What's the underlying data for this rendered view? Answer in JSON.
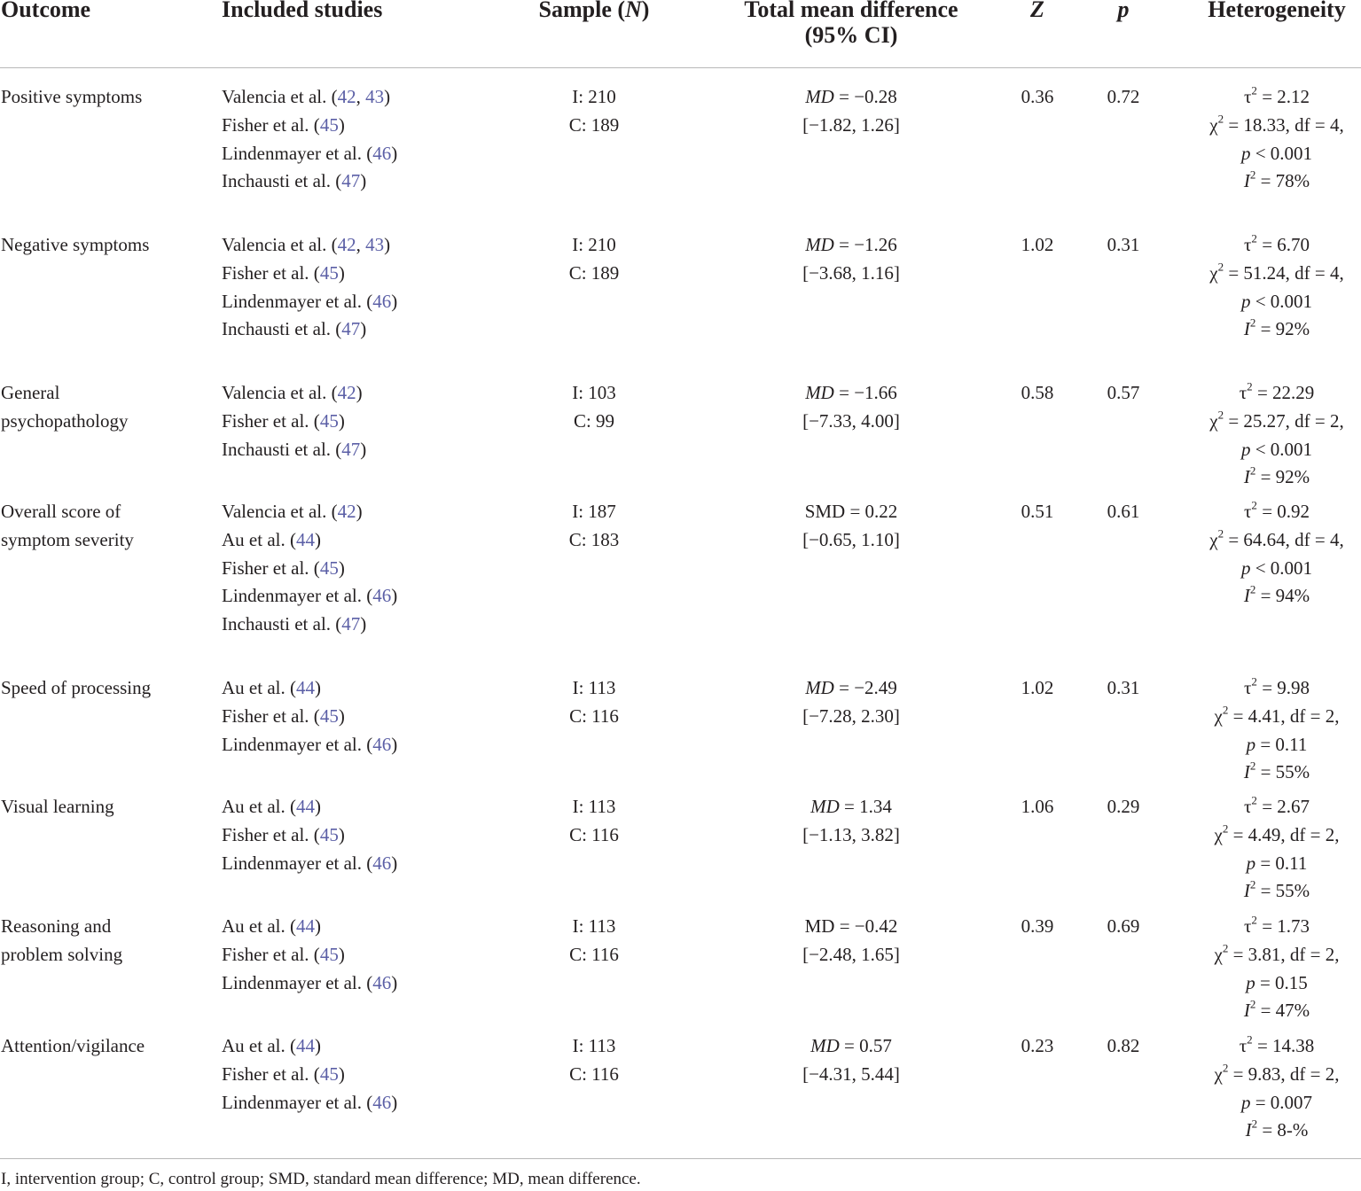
{
  "header": {
    "outcome": "Outcome",
    "studies": "Included studies",
    "sample_prefix": "Sample (",
    "sample_n": "N",
    "sample_suffix": ")",
    "md_line1": "Total mean difference",
    "md_line2": "(95% CI)",
    "z": "Z",
    "p": "p",
    "heterogeneity": "Heterogeneity"
  },
  "rows": [
    {
      "outcome": [
        "Positive symptoms"
      ],
      "studies": [
        {
          "name": "Valencia et al. (",
          "refs": [
            "42",
            "43"
          ],
          "close": ")"
        },
        {
          "name": "Fisher et al. (",
          "refs": [
            "45"
          ],
          "close": ")"
        },
        {
          "name": "Lindenmayer et al. (",
          "refs": [
            "46"
          ],
          "close": ")"
        },
        {
          "name": "Inchausti et al. (",
          "refs": [
            "47"
          ],
          "close": ")"
        }
      ],
      "sample_i": "I: 210",
      "sample_c": "C: 189",
      "md_label": "MD",
      "md_label_italic": true,
      "md_value": " = −0.28",
      "md_ci": "[−1.82, 1.26]",
      "z": "0.36",
      "p": "0.72",
      "tau2": " = 2.12",
      "chi2": " = 18.33, df = 4,",
      "p_het": " < 0.001",
      "i2": " = 78%"
    },
    {
      "outcome": [
        "Negative symptoms"
      ],
      "studies": [
        {
          "name": "Valencia et al. (",
          "refs": [
            "42",
            "43"
          ],
          "close": ")"
        },
        {
          "name": "Fisher et al. (",
          "refs": [
            "45"
          ],
          "close": ")"
        },
        {
          "name": "Lindenmayer et al. (",
          "refs": [
            "46"
          ],
          "close": ")"
        },
        {
          "name": "Inchausti et al. (",
          "refs": [
            "47"
          ],
          "close": ")"
        }
      ],
      "sample_i": "I: 210",
      "sample_c": "C: 189",
      "md_label": "MD",
      "md_label_italic": true,
      "md_value": " = −1.26",
      "md_ci": "[−3.68, 1.16]",
      "z": "1.02",
      "p": "0.31",
      "tau2": " = 6.70",
      "chi2": " = 51.24, df = 4,",
      "p_het": " < 0.001",
      "i2": " = 92%"
    },
    {
      "outcome": [
        "General",
        "psychopathology"
      ],
      "studies": [
        {
          "name": "Valencia et al. (",
          "refs": [
            "42"
          ],
          "close": ")"
        },
        {
          "name": "Fisher et al. (",
          "refs": [
            "45"
          ],
          "close": ")"
        },
        {
          "name": "Inchausti et al. (",
          "refs": [
            "47"
          ],
          "close": ")"
        }
      ],
      "sample_i": "I: 103",
      "sample_c": "C: 99",
      "md_label": "MD",
      "md_label_italic": true,
      "md_value": " = −1.66",
      "md_ci": "[−7.33, 4.00]",
      "z": "0.58",
      "p": "0.57",
      "tau2": " = 22.29",
      "chi2": " = 25.27, df = 2,",
      "p_het": " < 0.001",
      "i2": " = 92%"
    },
    {
      "outcome": [
        "Overall score of",
        "symptom severity"
      ],
      "studies": [
        {
          "name": "Valencia et al. (",
          "refs": [
            "42"
          ],
          "close": ")"
        },
        {
          "name": "Au et al. (",
          "refs": [
            "44"
          ],
          "close": ")"
        },
        {
          "name": "Fisher et al. (",
          "refs": [
            "45"
          ],
          "close": ")"
        },
        {
          "name": "Lindenmayer et al. (",
          "refs": [
            "46"
          ],
          "close": ")"
        },
        {
          "name": "Inchausti et al. (",
          "refs": [
            "47"
          ],
          "close": ")"
        }
      ],
      "sample_i": "I: 187",
      "sample_c": "C: 183",
      "md_label": "SMD",
      "md_label_italic": false,
      "md_value": " = 0.22",
      "md_ci": "[−0.65, 1.10]",
      "z": "0.51",
      "p": "0.61",
      "tau2": " = 0.92",
      "chi2": " = 64.64, df = 4,",
      "p_het": " < 0.001",
      "i2": " = 94%"
    },
    {
      "outcome": [
        "Speed of processing"
      ],
      "studies": [
        {
          "name": "Au et al. (",
          "refs": [
            "44"
          ],
          "close": ")"
        },
        {
          "name": "Fisher et al. (",
          "refs": [
            "45"
          ],
          "close": ")"
        },
        {
          "name": "Lindenmayer et al. (",
          "refs": [
            "46"
          ],
          "close": ")"
        }
      ],
      "sample_i": "I: 113",
      "sample_c": "C: 116",
      "md_label": "MD",
      "md_label_italic": true,
      "md_value": " = −2.49",
      "md_ci": "[−7.28, 2.30]",
      "z": "1.02",
      "p": "0.31",
      "tau2": " = 9.98",
      "chi2": " = 4.41, df = 2,",
      "p_het": " = 0.11",
      "i2": " = 55%"
    },
    {
      "outcome": [
        "Visual learning"
      ],
      "studies": [
        {
          "name": "Au et al. (",
          "refs": [
            "44"
          ],
          "close": ")"
        },
        {
          "name": "Fisher et al. (",
          "refs": [
            "45"
          ],
          "close": ")"
        },
        {
          "name": "Lindenmayer et al. (",
          "refs": [
            "46"
          ],
          "close": ")"
        }
      ],
      "sample_i": "I: 113",
      "sample_c": "C: 116",
      "md_label": "MD",
      "md_label_italic": true,
      "md_value": " = 1.34",
      "md_ci": "[−1.13, 3.82]",
      "z": "1.06",
      "p": "0.29",
      "tau2": " = 2.67",
      "chi2": " = 4.49, df = 2,",
      "p_het": " = 0.11",
      "i2": " = 55%"
    },
    {
      "outcome": [
        "Reasoning and",
        "problem solving"
      ],
      "studies": [
        {
          "name": "Au et al. (",
          "refs": [
            "44"
          ],
          "close": ")"
        },
        {
          "name": "Fisher et al. (",
          "refs": [
            "45"
          ],
          "close": ")"
        },
        {
          "name": "Lindenmayer et al. (",
          "refs": [
            "46"
          ],
          "close": ")"
        }
      ],
      "sample_i": "I: 113",
      "sample_c": "C: 116",
      "md_label": "MD",
      "md_label_italic": false,
      "md_value": " = −0.42",
      "md_ci": "[−2.48, 1.65]",
      "z": "0.39",
      "p": "0.69",
      "tau2": " = 1.73",
      "chi2": " = 3.81, df = 2,",
      "p_het": " = 0.15",
      "i2": " = 47%"
    },
    {
      "outcome": [
        "Attention/vigilance"
      ],
      "studies": [
        {
          "name": "Au et al. (",
          "refs": [
            "44"
          ],
          "close": ")"
        },
        {
          "name": "Fisher et al. (",
          "refs": [
            "45"
          ],
          "close": ")"
        },
        {
          "name": "Lindenmayer et al. (",
          "refs": [
            "46"
          ],
          "close": ")"
        }
      ],
      "sample_i": "I: 113",
      "sample_c": "C: 116",
      "md_label": "MD",
      "md_label_italic": true,
      "md_value": " = 0.57",
      "md_ci": "[−4.31, 5.44]",
      "z": "0.23",
      "p": "0.82",
      "tau2": " = 14.38",
      "chi2": " = 9.83, df = 2,",
      "p_het": " = 0.007",
      "i2": " = 8-%"
    }
  ],
  "symbols": {
    "tau": "τ",
    "chi": "χ",
    "p": "p",
    "i": "I",
    "sq": "2",
    "ref_sep": ", "
  },
  "footnote": "I, intervention group; C, control group; SMD, standard mean difference; MD, mean difference."
}
